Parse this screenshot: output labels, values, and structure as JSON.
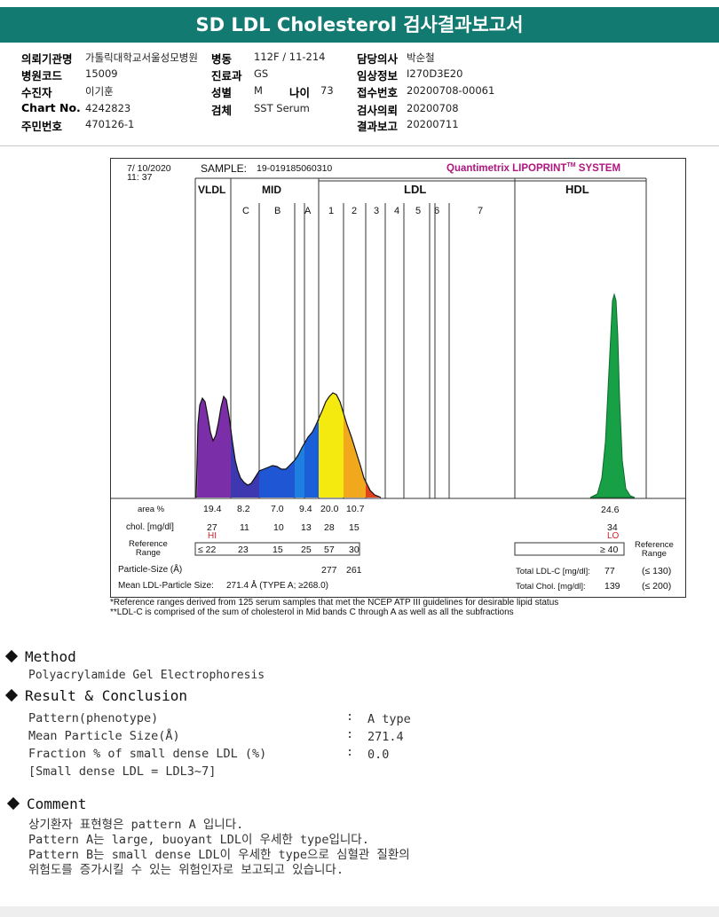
{
  "title": "SD LDL Cholesterol 검사결과보고서",
  "info": {
    "col1": [
      {
        "label": "의뢰기관명",
        "value": "가톨릭대학교서울성모병원"
      },
      {
        "label": "병원코드",
        "value": "15009"
      },
      {
        "label": "수진자",
        "value": "이기훈"
      },
      {
        "label": "Chart No.",
        "value": "4242823"
      },
      {
        "label": "주민번호",
        "value": "470126-1"
      }
    ],
    "col2": [
      {
        "label": "병동",
        "value": "112F / 11-214"
      },
      {
        "label": "진료과",
        "value": "GS"
      },
      {
        "label": "성별",
        "value": "M"
      },
      {
        "label": "검체",
        "value": "SST Serum"
      }
    ],
    "age_label": "나이",
    "age_value": "73",
    "col3": [
      {
        "label": "담당의사",
        "value": "박순철"
      },
      {
        "label": "임상정보",
        "value": "I270D3E20"
      },
      {
        "label": "접수번호",
        "value": "20200708-00061"
      },
      {
        "label": "검사의뢰",
        "value": "20200708"
      },
      {
        "label": "결과보고",
        "value": "20200711"
      }
    ]
  },
  "report": {
    "date": "7/ 10/2020",
    "time": "11: 37",
    "sample_label": "SAMPLE:",
    "sample_id": "19-019185060310",
    "brand": "Quantimetrix LIPOPRINT",
    "brand_tm": "TM",
    "brand_suffix": " SYSTEM",
    "band_groups": [
      "VLDL",
      "MID",
      "LDL",
      "HDL"
    ],
    "mid_bands": [
      "C",
      "B",
      "A"
    ],
    "ldl_bands": [
      "1",
      "2",
      "3",
      "4",
      "5",
      "6",
      "7"
    ],
    "row_labels": {
      "area": "area %",
      "chol": "chol. [mg/dl]",
      "ref": "Reference\nRange",
      "size": "Particle-Size (Å)",
      "mean": "Mean LDL-Particle Size:",
      "ref_right": "Reference\nRange"
    },
    "area_values": [
      "19.4",
      "8.2",
      "7.0",
      "9.4",
      "20.0",
      "10.7"
    ],
    "area_hdl": "24.6",
    "chol_values": [
      "27",
      "11",
      "10",
      "13",
      "28",
      "15"
    ],
    "chol_hdl": "34",
    "hi_flag": "HI",
    "lo_flag": "LO",
    "ref_values": [
      "≤ 22",
      "23",
      "15",
      "25",
      "57",
      "30"
    ],
    "ref_hdl": "≥ 40",
    "particle_sizes": [
      "277",
      "261"
    ],
    "mean_size": "271.4 Å  (TYPE A; ≥268.0)",
    "total_ldl_label": "Total LDL-C [mg/dl]:",
    "total_ldl_value": "77",
    "total_ldl_ref": "(≤ 130)",
    "total_chol_label": "Total Chol. [mg/dl]:",
    "total_chol_value": "139",
    "total_chol_ref": "(≤ 200)"
  },
  "notes": [
    "*Reference ranges derived from 125 serum samples that met the NCEP ATP III guidelines for desirable lipid status",
    "**LDL-C is comprised of the sum of cholesterol in Mid bands C through A as well as all the subfractions"
  ],
  "method": {
    "heading": "Method",
    "text": "Polyacrylamide Gel Electrophoresis"
  },
  "result": {
    "heading": "Result & Conclusion",
    "rows": [
      {
        "label": "Pattern(phenotype)",
        "value": "A type"
      },
      {
        "label": "Mean Particle Size(Å)",
        "value": "271.4"
      },
      {
        "label": "Fraction % of small dense LDL (%)",
        "value": "0.0"
      }
    ],
    "note": "[Small dense LDL = LDL3~7]"
  },
  "comment": {
    "heading": "Comment",
    "lines": [
      "상기환자 표현형은 pattern A 입니다.",
      "Pattern A는 large, buoyant LDL이 우세한 type입니다.",
      "Pattern B는 small dense LDL이 우세한 type으로 심혈관 질환의",
      "위험도를 증가시킬 수 있는 위험인자로 보고되고 있습니다."
    ]
  },
  "colors": {
    "banner": "#137a72",
    "vldl": "#7a2fa8",
    "mid": "#1f4fd0",
    "ldl1": "#f4ea10",
    "ldl2": "#f2a81c",
    "hdl": "#18a046",
    "brand": "#b0167f"
  }
}
